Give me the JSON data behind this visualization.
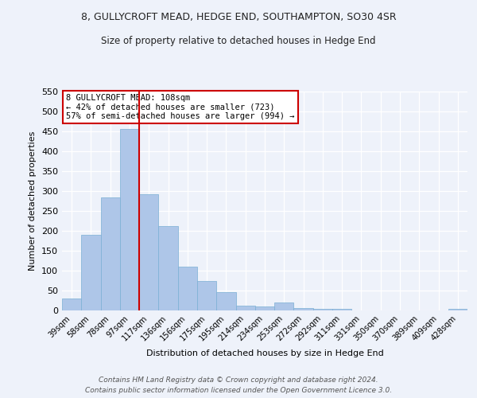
{
  "title": "8, GULLYCROFT MEAD, HEDGE END, SOUTHAMPTON, SO30 4SR",
  "subtitle": "Size of property relative to detached houses in Hedge End",
  "xlabel": "Distribution of detached houses by size in Hedge End",
  "ylabel": "Number of detached properties",
  "bar_color": "#aec6e8",
  "bar_edge_color": "#7aafd4",
  "bg_color": "#eef2fa",
  "grid_color": "#ffffff",
  "categories": [
    "39sqm",
    "58sqm",
    "78sqm",
    "97sqm",
    "117sqm",
    "136sqm",
    "156sqm",
    "175sqm",
    "195sqm",
    "214sqm",
    "234sqm",
    "253sqm",
    "272sqm",
    "292sqm",
    "311sqm",
    "331sqm",
    "350sqm",
    "370sqm",
    "389sqm",
    "409sqm",
    "428sqm"
  ],
  "values": [
    30,
    190,
    285,
    457,
    292,
    213,
    110,
    74,
    46,
    12,
    10,
    20,
    7,
    5,
    5,
    0,
    0,
    0,
    0,
    0,
    5
  ],
  "ylim": [
    0,
    550
  ],
  "yticks": [
    0,
    50,
    100,
    150,
    200,
    250,
    300,
    350,
    400,
    450,
    500,
    550
  ],
  "vline_color": "#cc0000",
  "vline_x": 3.5,
  "annotation_title": "8 GULLYCROFT MEAD: 108sqm",
  "annotation_line1": "← 42% of detached houses are smaller (723)",
  "annotation_line2": "57% of semi-detached houses are larger (994) →",
  "annotation_box_color": "#ffffff",
  "annotation_border_color": "#cc0000",
  "footer_line1": "Contains HM Land Registry data © Crown copyright and database right 2024.",
  "footer_line2": "Contains public sector information licensed under the Open Government Licence 3.0."
}
